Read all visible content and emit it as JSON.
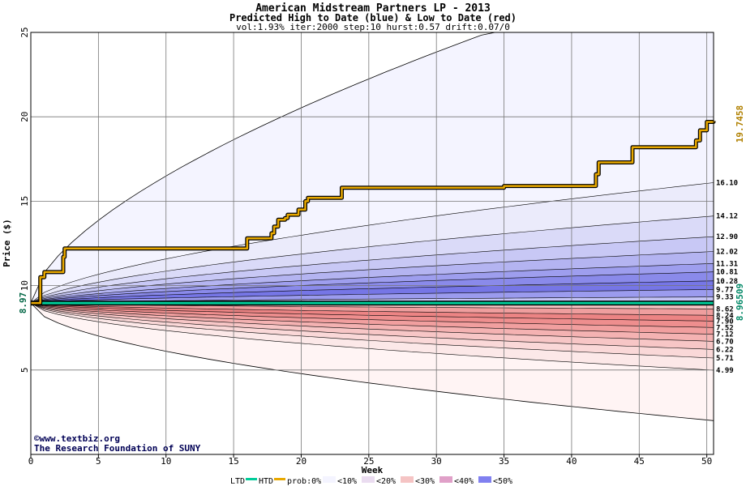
{
  "chart_data": {
    "type": "area",
    "title": "American Midstream Partners LP - 2013",
    "subtitle": "Predicted High to Date (blue) &  Low to Date (red)",
    "params": "vol:1.93% iter:2000 step:10 hurst:0.57 drift:0.07/0",
    "xlabel": "Week",
    "ylabel": "Price ($)",
    "xlim": [
      0,
      50.5
    ],
    "ylim": [
      0,
      25
    ],
    "x_ticks": [
      "0",
      "5",
      "10",
      "15",
      "20",
      "25",
      "30",
      "35",
      "40",
      "45",
      "50"
    ],
    "y_ticks": [
      "5",
      "10",
      "15",
      "20",
      "25"
    ],
    "grid": true,
    "start_price_label": "8.97",
    "start_price": 8.97,
    "htd_value_label": "19.7458",
    "htd_value": 19.7458,
    "ltd_value_label": "8.96509",
    "ltd_value": 8.96509,
    "outer_band": {
      "upper_end": 25,
      "lower_end": 2.0
    },
    "upper_bands": [
      {
        "value": 16.1,
        "label": "16.10",
        "prob": "<10%",
        "color": "#ebebfb"
      },
      {
        "value": 14.12,
        "label": "14.12",
        "prob": "<20%",
        "color": "#dadaf8"
      },
      {
        "value": 12.9,
        "label": "12.90",
        "prob": "<20%",
        "color": "#c8c8f5"
      },
      {
        "value": 12.02,
        "label": "12.02",
        "prob": "<30%",
        "color": "#b4b4f1"
      },
      {
        "value": 11.31,
        "label": "11.31",
        "prob": "<30%",
        "color": "#9e9eee"
      },
      {
        "value": 10.81,
        "label": "10.81",
        "prob": "<40%",
        "color": "#8a8aea"
      },
      {
        "value": 10.28,
        "label": "10.28",
        "prob": "<40%",
        "color": "#7676e6"
      },
      {
        "value": 9.77,
        "label": "9.77",
        "prob": "<50%",
        "color": "#9b9bee"
      },
      {
        "value": 9.33,
        "label": "9.33",
        "prob": "<50%",
        "color": "#c4c4f6"
      }
    ],
    "lower_bands": [
      {
        "value": 8.62,
        "label": "8.62",
        "prob": "<50%",
        "color": "#f5c4c4"
      },
      {
        "value": 8.24,
        "label": "8.24",
        "prob": "<50%",
        "color": "#ef9e9e"
      },
      {
        "value": 7.9,
        "label": "7.90",
        "prob": "<40%",
        "color": "#ec8484"
      },
      {
        "value": 7.52,
        "label": "7.52",
        "prob": "<40%",
        "color": "#ee8e8e"
      },
      {
        "value": 7.12,
        "label": "7.12",
        "prob": "<30%",
        "color": "#f19f9f"
      },
      {
        "value": 6.7,
        "label": "6.70",
        "prob": "<30%",
        "color": "#f4b2b2"
      },
      {
        "value": 6.22,
        "label": "6.22",
        "prob": "<20%",
        "color": "#f7c6c6"
      },
      {
        "value": 5.71,
        "label": "5.71",
        "prob": "<20%",
        "color": "#fad8d8"
      },
      {
        "value": 4.99,
        "label": "4.99",
        "prob": "<10%",
        "color": "#fce8e8"
      }
    ],
    "htd_series": {
      "name": "HTD",
      "points": [
        [
          0,
          8.97
        ],
        [
          0.7,
          10.5
        ],
        [
          1.0,
          10.8
        ],
        [
          2.0,
          10.8
        ],
        [
          2.4,
          11.7
        ],
        [
          2.5,
          12.2
        ],
        [
          15.8,
          12.2
        ],
        [
          16.0,
          12.8
        ],
        [
          17.5,
          12.8
        ],
        [
          17.8,
          13.1
        ],
        [
          18.0,
          13.5
        ],
        [
          18.3,
          13.9
        ],
        [
          18.8,
          14.0
        ],
        [
          19.0,
          14.2
        ],
        [
          19.6,
          14.2
        ],
        [
          19.8,
          14.5
        ],
        [
          20.3,
          15.0
        ],
        [
          20.5,
          15.2
        ],
        [
          22.8,
          15.2
        ],
        [
          23.0,
          15.8
        ],
        [
          34.8,
          15.8
        ],
        [
          35.0,
          15.9
        ],
        [
          41.5,
          15.9
        ],
        [
          41.8,
          16.6
        ],
        [
          42.0,
          17.3
        ],
        [
          44.2,
          17.3
        ],
        [
          44.5,
          18.2
        ],
        [
          48.8,
          18.2
        ],
        [
          49.2,
          18.6
        ],
        [
          49.5,
          19.2
        ],
        [
          50.0,
          19.7
        ],
        [
          50.5,
          19.75
        ]
      ]
    },
    "ltd_series": {
      "name": "LTD",
      "value": 8.96509
    }
  },
  "credits": {
    "line1": "©www.textbiz.org",
    "line2": "The Research Foundation of SUNY"
  },
  "legend": {
    "ltd": "LTD",
    "htd": "HTD",
    "prob": "prob:0%",
    "items": [
      "<10%",
      "<20%",
      "<30%",
      "<40%",
      "<50%"
    ],
    "item_colors": [
      "#f4f4ff",
      "#eadcf0",
      "#f5c4c4",
      "#e0a0c8",
      "#8080f0"
    ],
    "ltd_color": "#00cc99",
    "htd_color": "#e8a800"
  }
}
